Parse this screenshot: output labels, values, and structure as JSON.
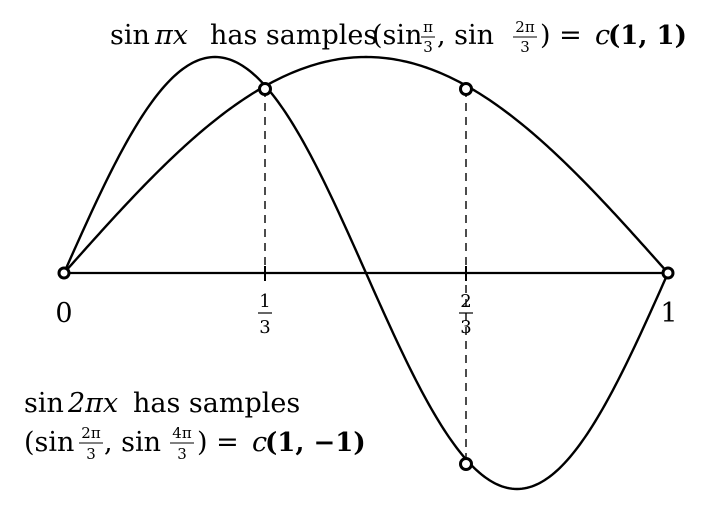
{
  "top_caption": {
    "fn": "sin",
    "fn_arg": "πx",
    "text": "has samples",
    "open": "(sin",
    "f1_num": "π",
    "f1_den": "3",
    "mid": ", sin",
    "f2_num": "2π",
    "f2_den": "3",
    "close": ") =",
    "c": "c",
    "vector": "(1, 1)"
  },
  "bottom_caption": {
    "line1_fn": "sin",
    "line1_arg": "2πx",
    "line1_text": "has samples",
    "open": "(sin",
    "f1_num": "2π",
    "f1_den": "3",
    "mid": ", sin",
    "f2_num": "4π",
    "f2_den": "3",
    "close": ") =",
    "c": "c",
    "vector": "(1, −1)"
  },
  "axis_labels": {
    "zero": "0",
    "third_num": "1",
    "third_den": "3",
    "two_thirds_num": "2",
    "two_thirds_den": "3",
    "one": "1"
  }
}
